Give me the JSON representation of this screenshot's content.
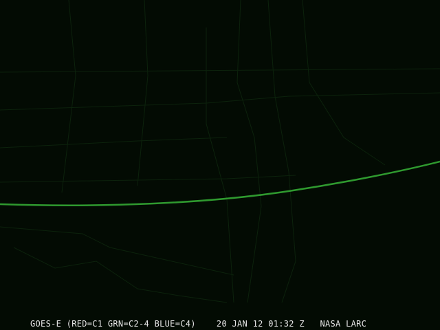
{
  "image": {
    "satellite": "GOES-E",
    "channels": "(RED=C1 GRN=C2-4 BLUE=C4)",
    "date": "20 JAN 12",
    "time": "01:32 Z",
    "credit": "NASA LARC"
  },
  "colors": {
    "background": "#030b03",
    "boundaries": "#0c220c",
    "terminator_arc": "#2f9a2f",
    "caption": "#e8e8e8"
  }
}
